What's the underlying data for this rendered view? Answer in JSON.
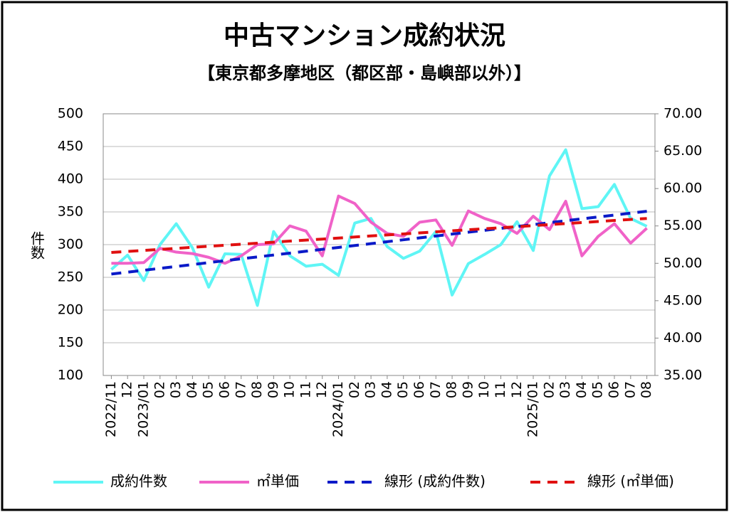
{
  "chart_data": {
    "type": "line",
    "title": "中古マンション成約状況",
    "subtitle": "【東京都多摩地区（都区部・島嶼部以外）】",
    "ylabel": "件数",
    "categories": [
      "2022/11",
      "12",
      "2023/01",
      "02",
      "03",
      "04",
      "05",
      "06",
      "07",
      "08",
      "09",
      "10",
      "11",
      "12",
      "2024/01",
      "02",
      "03",
      "04",
      "05",
      "06",
      "07",
      "08",
      "09",
      "10",
      "11",
      "12",
      "2025/01",
      "02",
      "03",
      "04",
      "05",
      "06",
      "07",
      "08"
    ],
    "series": [
      {
        "name": "成約件数",
        "color": "#5ff5f5",
        "style": "solid",
        "values": [
          262,
          284,
          245,
          300,
          332,
          295,
          235,
          286,
          285,
          207,
          320,
          283,
          267,
          270,
          253,
          333,
          340,
          297,
          279,
          290,
          320,
          223,
          271,
          285,
          300,
          335,
          291,
          405,
          445,
          355,
          358,
          392,
          340,
          328
        ]
      },
      {
        "name": "㎡単価",
        "color": "#f062c8",
        "style": "solid",
        "axis": "y2",
        "values": [
          50.0,
          50.0,
          50.1,
          52.0,
          51.5,
          51.3,
          50.8,
          50.0,
          51.0,
          52.5,
          52.6,
          55.0,
          54.3,
          51.0,
          59.0,
          58.0,
          55.5,
          54.0,
          53.6,
          55.5,
          55.8,
          52.4,
          57.0,
          56.0,
          55.3,
          54.0,
          56.3,
          54.5,
          58.3,
          51.0,
          53.6,
          55.3,
          52.7,
          54.7
        ]
      },
      {
        "name": "線形 (成約件数)",
        "color": "#0a1ac8",
        "style": "dashed",
        "values": [
          255,
          257.9,
          260.8,
          263.7,
          266.6,
          269.5,
          272.5,
          275.4,
          278.3,
          281.2,
          284.1,
          287.0,
          289.9,
          292.8,
          295.7,
          298.6,
          301.5,
          304.5,
          307.4,
          310.3,
          313.2,
          316.1,
          319.0,
          321.9,
          324.8,
          327.7,
          330.6,
          333.5,
          336.5,
          339.4,
          342.3,
          345.2,
          348.1,
          351.0
        ]
      },
      {
        "name": "線形 (㎡単価)",
        "color": "#e01010",
        "style": "dashed",
        "axis": "y2",
        "values": [
          51.45,
          51.59,
          51.73,
          51.86,
          52.0,
          52.14,
          52.28,
          52.42,
          52.55,
          52.69,
          52.83,
          52.97,
          53.11,
          53.24,
          53.38,
          53.52,
          53.66,
          53.8,
          53.93,
          54.07,
          54.21,
          54.35,
          54.49,
          54.62,
          54.76,
          54.9,
          55.04,
          55.18,
          55.31,
          55.45,
          55.59,
          55.73,
          55.87,
          56.0
        ]
      }
    ],
    "ylim": [
      100,
      500
    ],
    "yticks": [
      100,
      150,
      200,
      250,
      300,
      350,
      400,
      450,
      500
    ],
    "y2lim": [
      35,
      70
    ],
    "y2ticks": [
      {
        "value": 35,
        "label": "35.00"
      },
      {
        "value": 40,
        "label": "40.00"
      },
      {
        "value": 45,
        "label": "45.00"
      },
      {
        "value": 50,
        "label": "50.00"
      },
      {
        "value": 55,
        "label": "55.00"
      },
      {
        "value": 60,
        "label": "60.00"
      },
      {
        "value": 65,
        "label": "65.00"
      },
      {
        "value": 70,
        "label": "70.00"
      }
    ],
    "grid": true,
    "legend": "bottom"
  }
}
